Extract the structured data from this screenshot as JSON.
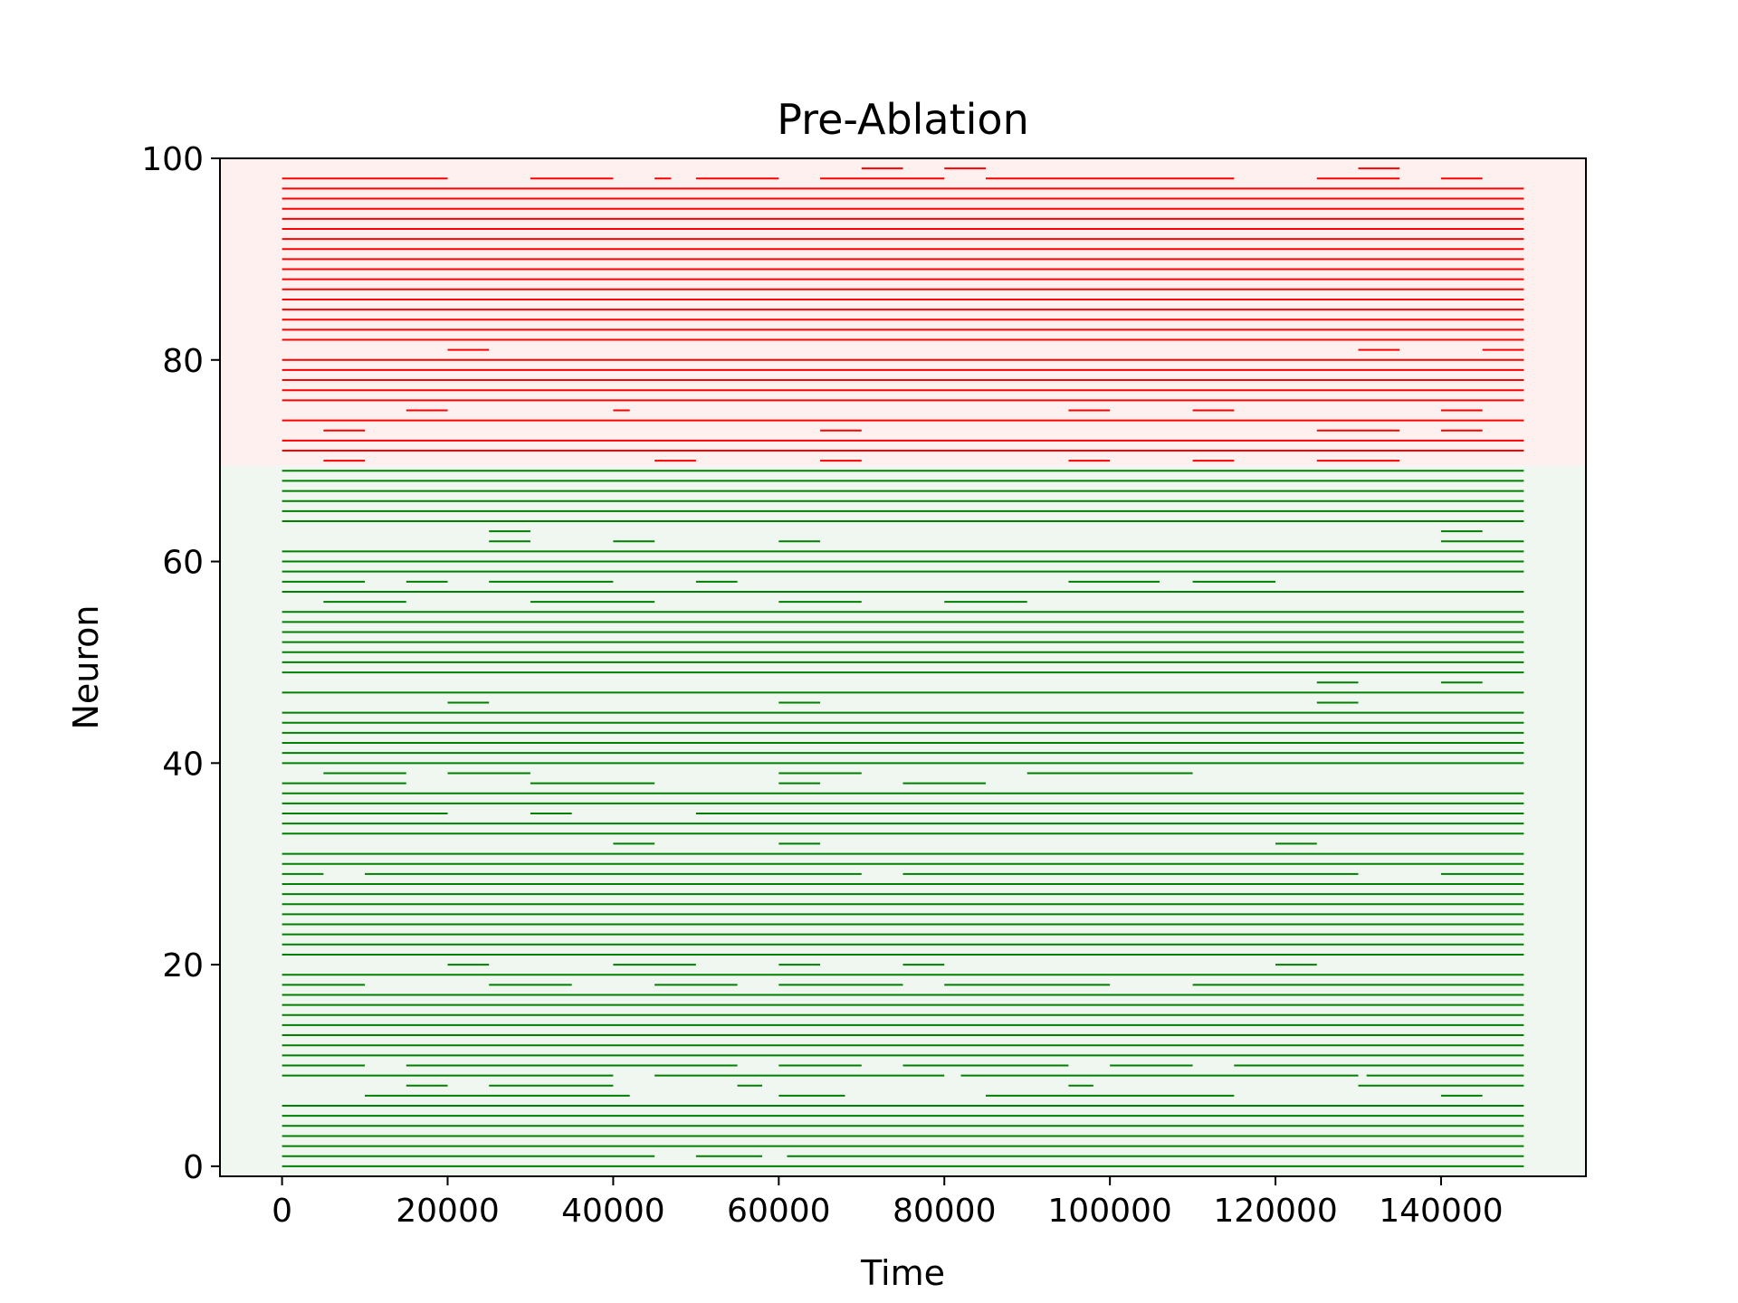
{
  "chart_data": {
    "type": "raster",
    "title": "Pre-Ablation",
    "xlabel": "Time",
    "ylabel": "Neuron",
    "xlim": [
      -7500,
      157500
    ],
    "ylim": [
      -1,
      100
    ],
    "xticks": [
      0,
      20000,
      40000,
      60000,
      80000,
      100000,
      120000,
      140000
    ],
    "yticks": [
      0,
      20,
      40,
      60,
      80,
      100
    ],
    "grid": false,
    "time_range": [
      0,
      150000
    ],
    "neuron_count": 100,
    "groups": [
      {
        "neurons": [
          0,
          69
        ],
        "color": "#008000",
        "background": "#f0f7f0"
      },
      {
        "neurons": [
          70,
          99
        ],
        "color": "#ff0000",
        "background": "#fff0f0"
      }
    ],
    "active_intervals": {
      "0": [
        [
          0,
          150000
        ]
      ],
      "1": [
        [
          0,
          45000
        ],
        [
          50000,
          58000
        ],
        [
          61000,
          150000
        ]
      ],
      "2": [
        [
          0,
          150000
        ]
      ],
      "3": [
        [
          0,
          150000
        ]
      ],
      "4": [
        [
          0,
          150000
        ]
      ],
      "5": [
        [
          0,
          150000
        ]
      ],
      "6": [
        [
          0,
          150000
        ]
      ],
      "7": [
        [
          10000,
          42000
        ],
        [
          60000,
          68000
        ],
        [
          85000,
          115000
        ],
        [
          140000,
          145000
        ]
      ],
      "8": [
        [
          15000,
          20000
        ],
        [
          25000,
          40000
        ],
        [
          55000,
          58000
        ],
        [
          95000,
          98000
        ],
        [
          130000,
          150000
        ]
      ],
      "9": [
        [
          0,
          40000
        ],
        [
          45000,
          80000
        ],
        [
          82000,
          130000
        ],
        [
          131000,
          150000
        ]
      ],
      "10": [
        [
          0,
          10000
        ],
        [
          15000,
          55000
        ],
        [
          60000,
          70000
        ],
        [
          75000,
          95000
        ],
        [
          100000,
          110000
        ],
        [
          115000,
          150000
        ]
      ],
      "11": [
        [
          0,
          150000
        ]
      ],
      "12": [
        [
          0,
          150000
        ]
      ],
      "13": [
        [
          0,
          150000
        ]
      ],
      "14": [
        [
          0,
          150000
        ]
      ],
      "15": [
        [
          0,
          150000
        ]
      ],
      "16": [
        [
          0,
          150000
        ]
      ],
      "17": [
        [
          0,
          150000
        ]
      ],
      "18": [
        [
          0,
          10000
        ],
        [
          25000,
          35000
        ],
        [
          45000,
          55000
        ],
        [
          60000,
          75000
        ],
        [
          80000,
          100000
        ],
        [
          110000,
          150000
        ]
      ],
      "19": [
        [
          0,
          150000
        ]
      ],
      "20": [
        [
          20000,
          25000
        ],
        [
          40000,
          50000
        ],
        [
          60000,
          65000
        ],
        [
          75000,
          80000
        ],
        [
          120000,
          125000
        ]
      ],
      "21": [
        [
          0,
          150000
        ]
      ],
      "22": [
        [
          0,
          150000
        ]
      ],
      "23": [
        [
          0,
          150000
        ]
      ],
      "24": [
        [
          0,
          150000
        ]
      ],
      "25": [
        [
          0,
          150000
        ]
      ],
      "26": [
        [
          0,
          150000
        ]
      ],
      "27": [
        [
          0,
          150000
        ]
      ],
      "28": [
        [
          0,
          150000
        ]
      ],
      "29": [
        [
          0,
          5000
        ],
        [
          10000,
          70000
        ],
        [
          75000,
          130000
        ],
        [
          140000,
          150000
        ]
      ],
      "30": [
        [
          0,
          150000
        ]
      ],
      "31": [
        [
          0,
          150000
        ]
      ],
      "32": [
        [
          40000,
          45000
        ],
        [
          60000,
          65000
        ],
        [
          120000,
          125000
        ]
      ],
      "33": [
        [
          0,
          150000
        ]
      ],
      "34": [
        [
          0,
          150000
        ]
      ],
      "35": [
        [
          0,
          20000
        ],
        [
          30000,
          35000
        ],
        [
          50000,
          150000
        ]
      ],
      "36": [
        [
          0,
          150000
        ]
      ],
      "37": [
        [
          0,
          150000
        ]
      ],
      "38": [
        [
          0,
          15000
        ],
        [
          30000,
          45000
        ],
        [
          60000,
          65000
        ],
        [
          75000,
          85000
        ]
      ],
      "39": [
        [
          5000,
          15000
        ],
        [
          20000,
          30000
        ],
        [
          60000,
          70000
        ],
        [
          90000,
          110000
        ]
      ],
      "40": [
        [
          0,
          150000
        ]
      ],
      "41": [
        [
          0,
          150000
        ]
      ],
      "42": [
        [
          0,
          150000
        ]
      ],
      "43": [
        [
          0,
          150000
        ]
      ],
      "44": [
        [
          0,
          150000
        ]
      ],
      "45": [
        [
          0,
          150000
        ]
      ],
      "46": [
        [
          20000,
          25000
        ],
        [
          60000,
          65000
        ],
        [
          125000,
          130000
        ]
      ],
      "47": [
        [
          0,
          150000
        ]
      ],
      "48": [
        [
          125000,
          130000
        ],
        [
          140000,
          145000
        ]
      ],
      "49": [
        [
          0,
          150000
        ]
      ],
      "50": [
        [
          0,
          150000
        ]
      ],
      "51": [
        [
          0,
          150000
        ]
      ],
      "52": [
        [
          0,
          150000
        ]
      ],
      "53": [
        [
          0,
          150000
        ]
      ],
      "54": [
        [
          0,
          150000
        ]
      ],
      "55": [
        [
          0,
          150000
        ]
      ],
      "56": [
        [
          5000,
          15000
        ],
        [
          30000,
          45000
        ],
        [
          60000,
          70000
        ],
        [
          80000,
          90000
        ]
      ],
      "57": [
        [
          0,
          150000
        ]
      ],
      "58": [
        [
          0,
          10000
        ],
        [
          15000,
          20000
        ],
        [
          25000,
          40000
        ],
        [
          50000,
          55000
        ],
        [
          95000,
          106000
        ],
        [
          110000,
          120000
        ]
      ],
      "59": [
        [
          0,
          150000
        ]
      ],
      "60": [
        [
          0,
          150000
        ]
      ],
      "61": [
        [
          0,
          150000
        ]
      ],
      "62": [
        [
          25000,
          30000
        ],
        [
          40000,
          45000
        ],
        [
          60000,
          65000
        ],
        [
          140000,
          150000
        ]
      ],
      "63": [
        [
          25000,
          30000
        ],
        [
          140000,
          145000
        ]
      ],
      "64": [
        [
          0,
          150000
        ]
      ],
      "65": [
        [
          0,
          150000
        ]
      ],
      "66": [
        [
          0,
          150000
        ]
      ],
      "67": [
        [
          0,
          150000
        ]
      ],
      "68": [
        [
          0,
          150000
        ]
      ],
      "69": [
        [
          0,
          150000
        ]
      ],
      "70": [
        [
          5000,
          10000
        ],
        [
          45000,
          50000
        ],
        [
          65000,
          70000
        ],
        [
          95000,
          100000
        ],
        [
          110000,
          115000
        ],
        [
          125000,
          135000
        ]
      ],
      "71": [
        [
          0,
          150000
        ]
      ],
      "72": [
        [
          0,
          150000
        ]
      ],
      "73": [
        [
          5000,
          10000
        ],
        [
          65000,
          70000
        ],
        [
          125000,
          135000
        ],
        [
          140000,
          145000
        ]
      ],
      "74": [
        [
          0,
          150000
        ]
      ],
      "75": [
        [
          15000,
          20000
        ],
        [
          40000,
          42000
        ],
        [
          95000,
          100000
        ],
        [
          110000,
          115000
        ],
        [
          140000,
          145000
        ]
      ],
      "76": [
        [
          0,
          150000
        ]
      ],
      "77": [
        [
          0,
          150000
        ]
      ],
      "78": [
        [
          0,
          150000
        ]
      ],
      "79": [
        [
          0,
          150000
        ]
      ],
      "80": [
        [
          0,
          150000
        ]
      ],
      "81": [
        [
          20000,
          25000
        ],
        [
          130000,
          135000
        ],
        [
          145000,
          150000
        ]
      ],
      "82": [
        [
          0,
          150000
        ]
      ],
      "83": [
        [
          0,
          150000
        ]
      ],
      "84": [
        [
          0,
          150000
        ]
      ],
      "85": [
        [
          0,
          150000
        ]
      ],
      "86": [
        [
          0,
          150000
        ]
      ],
      "87": [
        [
          0,
          150000
        ]
      ],
      "88": [
        [
          0,
          150000
        ]
      ],
      "89": [
        [
          0,
          150000
        ]
      ],
      "90": [
        [
          0,
          150000
        ]
      ],
      "91": [
        [
          0,
          150000
        ]
      ],
      "92": [
        [
          0,
          150000
        ]
      ],
      "93": [
        [
          0,
          150000
        ]
      ],
      "94": [
        [
          0,
          150000
        ]
      ],
      "95": [
        [
          0,
          150000
        ]
      ],
      "96": [
        [
          0,
          150000
        ]
      ],
      "97": [
        [
          0,
          150000
        ]
      ],
      "98": [
        [
          0,
          20000
        ],
        [
          30000,
          40000
        ],
        [
          45000,
          47000
        ],
        [
          50000,
          60000
        ],
        [
          65000,
          80000
        ],
        [
          85000,
          115000
        ],
        [
          125000,
          135000
        ],
        [
          140000,
          145000
        ]
      ],
      "99": [
        [
          70000,
          75000
        ],
        [
          80000,
          85000
        ],
        [
          130000,
          135000
        ]
      ]
    }
  }
}
